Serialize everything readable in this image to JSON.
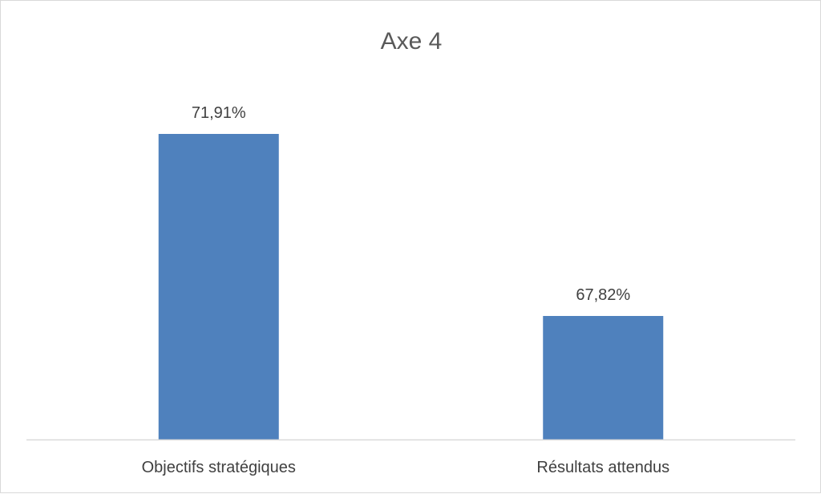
{
  "chart_data": {
    "type": "bar",
    "title": "Axe 4",
    "categories": [
      "Objectifs stratégiques",
      "Résultats attendus"
    ],
    "values": [
      71.91,
      67.82
    ],
    "data_labels": [
      "71,91%",
      "67,82%"
    ],
    "bar_color": "#4f81bd",
    "axis_color": "#d9d9d9",
    "ylim": [
      65,
      75
    ],
    "grid": false,
    "legend": "none"
  }
}
